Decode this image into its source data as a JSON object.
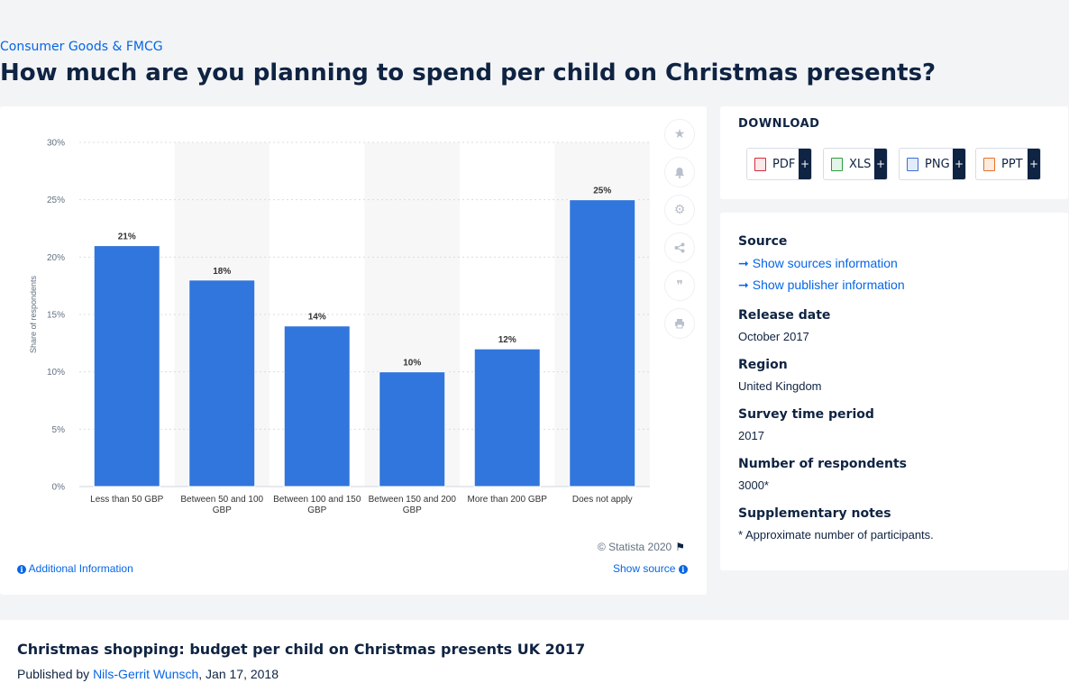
{
  "breadcrumb": "Consumer Goods & FMCG",
  "page_title": "How much are you planning to spend per child on Christmas presents?",
  "chart_data": {
    "type": "bar",
    "categories": [
      "Less than 50 GBP",
      "Between 50 and 100 GBP",
      "Between 100 and 150 GBP",
      "Between 150 and 200 GBP",
      "More than 200 GBP",
      "Does not apply"
    ],
    "values": [
      21,
      18,
      14,
      10,
      12,
      25
    ],
    "data_labels": [
      "21%",
      "18%",
      "14%",
      "10%",
      "12%",
      "25%"
    ],
    "title": "",
    "xlabel": "",
    "ylabel": "Share of respondents",
    "ylim": [
      0,
      30
    ],
    "yticks": [
      "0%",
      "5%",
      "10%",
      "15%",
      "20%",
      "25%",
      "30%"
    ],
    "bar_color": "#3176dc",
    "grid": true
  },
  "chart_footer": {
    "copyright": "© Statista 2020",
    "additional_info": "Additional Information",
    "show_source": "Show source"
  },
  "tools": [
    "star-icon",
    "bell-icon",
    "gear-icon",
    "share-icon",
    "quote-icon",
    "print-icon"
  ],
  "download": {
    "title": "DOWNLOAD",
    "buttons": [
      {
        "label": "PDF",
        "color": "#d5293b"
      },
      {
        "label": "XLS",
        "color": "#2e9a42"
      },
      {
        "label": "PNG",
        "color": "#3a6fd6"
      },
      {
        "label": "PPT",
        "color": "#e8702a"
      }
    ],
    "plus": "+"
  },
  "meta": {
    "source_label": "Source",
    "show_sources": "Show sources information",
    "show_publisher": "Show publisher information",
    "release_label": "Release date",
    "release_value": "October 2017",
    "region_label": "Region",
    "region_value": "United Kingdom",
    "survey_label": "Survey time period",
    "survey_value": "2017",
    "respondents_label": "Number of respondents",
    "respondents_value": "3000*",
    "notes_label": "Supplementary notes",
    "notes_value": "* Approximate number of participants."
  },
  "publish": {
    "title": "Christmas shopping: budget per child on Christmas presents UK 2017",
    "prefix": "Published by",
    "author": "Nils-Gerrit Wunsch",
    "date": ", Jan 17, 2018"
  }
}
